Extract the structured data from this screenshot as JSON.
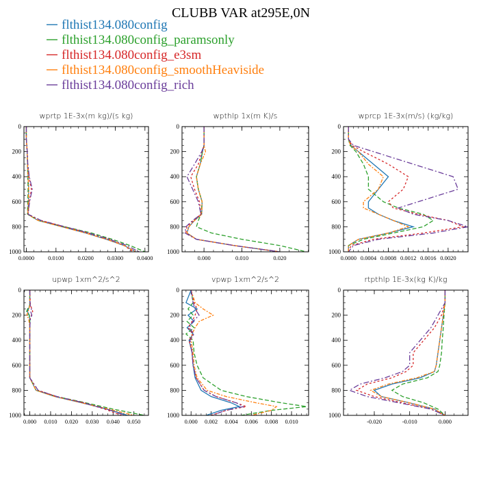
{
  "title": "CLUBB VAR at295E,0N",
  "legend": [
    {
      "label": "flthist134.080config",
      "color": "#1f77b4"
    },
    {
      "label": "flthist134.080config_paramsonly",
      "color": "#2ca02c"
    },
    {
      "label": "flthist134.080config_e3sm",
      "color": "#d62728"
    },
    {
      "label": "flthist134.080config_smoothHeaviside",
      "color": "#ff7f0e"
    },
    {
      "label": "flthist134.080config_rich",
      "color": "#6a3d9a"
    }
  ],
  "chart_data": [
    {
      "type": "line",
      "title": "wprtp  1E-3x(m kg)/(s kg)",
      "xlim": [
        -0.0008,
        0.0412
      ],
      "ylim": [
        0,
        1000
      ],
      "y_inverted": true,
      "xticks": [
        "0.0000",
        "0.0100",
        "0.0200",
        "0.0300",
        "0.0400"
      ],
      "xtick_values": [
        0,
        0.01,
        0.02,
        0.03,
        0.04
      ],
      "yticks": [
        0,
        200,
        400,
        600,
        800,
        1000
      ],
      "y": [
        0,
        100,
        200,
        300,
        400,
        500,
        600,
        700,
        750,
        800,
        850,
        900,
        950,
        1000
      ],
      "series": [
        {
          "values": [
            0,
            0,
            0.0003,
            0.0004,
            0.0006,
            0.0008,
            0.0007,
            0.0005,
            0.004,
            0.012,
            0.02,
            0.027,
            0.033,
            0.037
          ]
        },
        {
          "values": [
            0,
            0,
            0.0003,
            0.0004,
            0.0005,
            0.0006,
            0.0005,
            0.0004,
            0.004,
            0.013,
            0.022,
            0.029,
            0.035,
            0.04
          ]
        },
        {
          "values": [
            0,
            0,
            0.0003,
            0.0005,
            0.0009,
            0.0017,
            0.001,
            0.0006,
            0.005,
            0.013,
            0.021,
            0.028,
            0.033,
            0.036
          ]
        },
        {
          "values": [
            0,
            0,
            0.0003,
            0.0004,
            0.0006,
            0.0008,
            0.0007,
            0.0005,
            0.004,
            0.012,
            0.02,
            0.027,
            0.033,
            0.037
          ]
        },
        {
          "values": [
            0,
            0,
            0.0003,
            0.0005,
            0.001,
            0.002,
            0.0011,
            0.0006,
            0.005,
            0.013,
            0.021,
            0.028,
            0.034,
            0.038
          ]
        }
      ]
    },
    {
      "type": "line",
      "title": "wpthlp  1x(m K)/s",
      "xlim": [
        -0.0058,
        0.0276
      ],
      "ylim": [
        0,
        1000
      ],
      "y_inverted": true,
      "xticks": [
        "0.000",
        "0.010",
        "0.020"
      ],
      "xtick_values": [
        0,
        0.01,
        0.02
      ],
      "yticks": [
        0,
        200,
        400,
        600,
        800,
        1000
      ],
      "y": [
        0,
        150,
        200,
        300,
        400,
        500,
        600,
        700,
        750,
        800,
        850,
        900,
        950,
        1000
      ],
      "series": [
        {
          "values": [
            0,
            0,
            -0.0004,
            -0.001,
            -0.002,
            -0.0015,
            -0.0005,
            -0.0006,
            -0.0025,
            -0.004,
            -0.0045,
            -0.002,
            0.008,
            0.02
          ]
        },
        {
          "values": [
            0,
            0,
            -0.0004,
            -0.001,
            -0.002,
            -0.0015,
            -0.0005,
            -0.0008,
            -0.0015,
            -0.002,
            0.002,
            0.01,
            0.02,
            0.027
          ]
        },
        {
          "values": [
            0,
            0,
            -0.0005,
            -0.0015,
            -0.0035,
            -0.0025,
            -0.0012,
            -0.0008,
            -0.0028,
            -0.0045,
            -0.0048,
            -0.002,
            0.008,
            0.02
          ]
        },
        {
          "values": [
            0,
            0,
            0.0004,
            -0.001,
            -0.002,
            -0.0015,
            -0.0005,
            -0.0006,
            -0.0025,
            -0.004,
            -0.0045,
            -0.002,
            0.008,
            0.02
          ]
        },
        {
          "values": [
            0,
            0,
            -0.0006,
            -0.0025,
            -0.0045,
            -0.003,
            -0.0015,
            -0.0008,
            -0.003,
            -0.0048,
            -0.005,
            -0.002,
            0.008,
            0.02
          ]
        }
      ]
    },
    {
      "type": "line",
      "title": "wprcp  1E-3x(m/s) (kg/kg)",
      "xlim": [
        -0.0001,
        0.0024
      ],
      "ylim": [
        0,
        1000
      ],
      "y_inverted": true,
      "xticks": [
        "0.0000",
        "0.0004",
        "0.0008",
        "0.0012",
        "0.0016",
        "0.0020"
      ],
      "xtick_values": [
        0,
        0.0004,
        0.0008,
        0.0012,
        0.0016,
        0.002
      ],
      "yticks": [
        0,
        200,
        400,
        600,
        800,
        1000
      ],
      "y": [
        0,
        100,
        150,
        200,
        300,
        400,
        500,
        600,
        650,
        700,
        750,
        800,
        850,
        900,
        950,
        1000
      ],
      "series": [
        {
          "values": [
            0,
            0,
            5e-05,
            0.0002,
            0.0005,
            0.0008,
            0.0006,
            0.0004,
            0.0004,
            0.0006,
            0.0009,
            0.0013,
            0.0008,
            0.0002,
            0,
            0
          ]
        },
        {
          "values": [
            0,
            0,
            3e-05,
            0.00015,
            0.0003,
            0.0004,
            0.0004,
            0.0007,
            0.001,
            0.0015,
            0.0017,
            0.0015,
            0.0009,
            0.0003,
            0,
            0
          ]
        },
        {
          "values": [
            0,
            0,
            7e-05,
            0.0003,
            0.0008,
            0.0012,
            0.0011,
            0.0008,
            0.0009,
            0.0014,
            0.002,
            0.0023,
            0.0015,
            0.0005,
            5e-05,
            0
          ]
        },
        {
          "values": [
            0,
            0,
            4e-05,
            0.0002,
            0.0004,
            0.0007,
            0.0006,
            0.0003,
            0.0003,
            0.0006,
            0.0009,
            0.0012,
            0.0008,
            0.0002,
            0,
            0
          ]
        },
        {
          "values": [
            0,
            0,
            0.0001,
            0.0005,
            0.0013,
            0.0021,
            0.0022,
            0.0014,
            0.001,
            0.0013,
            0.002,
            0.0024,
            0.0017,
            0.0006,
            0.0001,
            0
          ]
        }
      ]
    },
    {
      "type": "line",
      "title": "upwp  1xm^2/s^2",
      "xlim": [
        -0.0028,
        0.057
      ],
      "ylim": [
        0,
        1000
      ],
      "y_inverted": true,
      "xticks": [
        "0.000",
        "0.010",
        "0.020",
        "0.030",
        "0.040",
        "0.050"
      ],
      "xtick_values": [
        0,
        0.01,
        0.02,
        0.03,
        0.04,
        0.05
      ],
      "yticks": [
        0,
        200,
        400,
        600,
        800,
        1000
      ],
      "y": [
        0,
        120,
        150,
        170,
        200,
        230,
        300,
        500,
        700,
        800,
        850,
        900,
        950,
        1000
      ],
      "series": [
        {
          "values": [
            0,
            0,
            -0.0006,
            -0.0012,
            -0.0002,
            0,
            0,
            0,
            0,
            0.003,
            0.012,
            0.025,
            0.037,
            0.047
          ]
        },
        {
          "values": [
            0,
            0,
            -0.001,
            -0.0015,
            -0.0003,
            0,
            0,
            0,
            0,
            0.003,
            0.013,
            0.027,
            0.04,
            0.055
          ]
        },
        {
          "values": [
            0,
            0.0003,
            0.001,
            0.0014,
            0.0008,
            0.0002,
            0,
            0,
            0,
            0.004,
            0.013,
            0.026,
            0.036,
            0.044
          ]
        },
        {
          "values": [
            0,
            0,
            -0.0004,
            -0.0008,
            -0.0014,
            -0.0005,
            0,
            0,
            0,
            0.003,
            0.012,
            0.025,
            0.038,
            0.05
          ]
        },
        {
          "values": [
            0,
            0.0002,
            0.0008,
            0.0004,
            0.001,
            0.0003,
            0,
            0,
            0,
            0.004,
            0.013,
            0.026,
            0.037,
            0.046
          ]
        }
      ]
    },
    {
      "type": "line",
      "title": "vpwp  1xm^2/s^2",
      "xlim": [
        -0.0009,
        0.0117
      ],
      "ylim": [
        0,
        1000
      ],
      "y_inverted": true,
      "xticks": [
        "0.000",
        "0.002",
        "0.004",
        "0.006",
        "0.008",
        "0.010"
      ],
      "xtick_values": [
        0,
        0.002,
        0.004,
        0.006,
        0.008,
        0.01
      ],
      "yticks": [
        0,
        200,
        400,
        600,
        800,
        1000
      ],
      "y": [
        0,
        100,
        150,
        200,
        250,
        300,
        350,
        400,
        500,
        600,
        700,
        800,
        850,
        900,
        930,
        960,
        1000
      ],
      "series": [
        {
          "values": [
            0,
            -0.0005,
            0.0006,
            -0.0003,
            0.0003,
            -0.0004,
            0.0002,
            -0.0002,
            0.0001,
            0.0002,
            0.0004,
            0.001,
            0.002,
            0.004,
            0.0048,
            0.003,
            0.0015
          ]
        },
        {
          "values": [
            0,
            0.0002,
            -0.0003,
            0.0002,
            -0.0004,
            0.0003,
            -0.0005,
            0.0002,
            0.0003,
            0.0006,
            0.0012,
            0.003,
            0.0055,
            0.009,
            0.0115,
            0.008,
            0.005
          ]
        },
        {
          "values": [
            0,
            0.0003,
            0.0006,
            0.0004,
            0.0001,
            -0.0003,
            0.0002,
            -0.0002,
            0.0001,
            0.0002,
            0.0005,
            0.0013,
            0.0025,
            0.0045,
            0.0055,
            0.0035,
            0.002
          ]
        },
        {
          "values": [
            0,
            0.0004,
            0.0012,
            0.0022,
            0.0008,
            0.0004,
            0.0001,
            0,
            0.0002,
            0.0003,
            0.0006,
            0.0016,
            0.0035,
            0.0065,
            0.0085,
            0.008,
            0.006
          ]
        },
        {
          "values": [
            0,
            0.0002,
            0.0004,
            0.0008,
            0.0002,
            -0.0002,
            0.0003,
            -0.0001,
            0.0001,
            0.0002,
            0.0005,
            0.0013,
            0.0025,
            0.0045,
            0.0052,
            0.0035,
            0.002
          ]
        }
      ]
    },
    {
      "type": "line",
      "title": "rtpthlp  1E-3x(kg K)/kg",
      "xlim": [
        -0.0287,
        0.0065
      ],
      "ylim": [
        0,
        1000
      ],
      "y_inverted": true,
      "xticks": [
        "-0.020",
        "-0.010",
        "0.000"
      ],
      "xtick_values": [
        -0.02,
        -0.01,
        0
      ],
      "yticks": [
        0,
        200,
        400,
        600,
        800,
        1000
      ],
      "y": [
        0,
        100,
        200,
        300,
        400,
        500,
        600,
        650,
        700,
        750,
        800,
        850,
        900,
        950,
        1000
      ],
      "series": [
        {
          "values": [
            0,
            0,
            -0.0005,
            -0.001,
            -0.0015,
            -0.002,
            -0.0025,
            -0.003,
            -0.007,
            -0.015,
            -0.02,
            -0.018,
            -0.01,
            -0.003,
            0
          ]
        },
        {
          "values": [
            0,
            0,
            -0.0003,
            -0.0005,
            -0.0008,
            -0.001,
            -0.0015,
            -0.002,
            -0.005,
            -0.012,
            -0.015,
            -0.012,
            -0.006,
            -0.002,
            0
          ]
        },
        {
          "values": [
            0,
            0,
            -0.001,
            -0.003,
            -0.006,
            -0.009,
            -0.009,
            -0.011,
            -0.015,
            -0.022,
            -0.025,
            -0.02,
            -0.012,
            -0.004,
            0
          ]
        },
        {
          "values": [
            0,
            0,
            -0.0005,
            -0.001,
            -0.0015,
            -0.002,
            -0.0025,
            -0.003,
            -0.008,
            -0.016,
            -0.021,
            -0.018,
            -0.01,
            -0.003,
            0
          ]
        },
        {
          "values": [
            0,
            0,
            -0.002,
            -0.004,
            -0.007,
            -0.01,
            -0.01,
            -0.012,
            -0.017,
            -0.024,
            -0.027,
            -0.022,
            -0.013,
            -0.004,
            0
          ]
        }
      ]
    }
  ]
}
